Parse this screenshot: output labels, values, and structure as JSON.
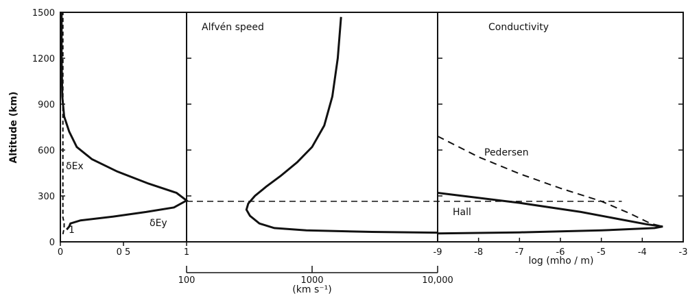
{
  "chart_data": [
    {
      "type": "line",
      "panel": "electric-field",
      "ylabel": "Altitude (km)",
      "ylim": [
        0,
        1500
      ],
      "y_ticks": [
        "0",
        "300",
        "600",
        "900",
        "1200",
        "1500"
      ],
      "xlim": [
        0,
        1
      ],
      "x_ticks": [
        "0",
        "0 5",
        "1"
      ],
      "series": [
        {
          "name": "δEx",
          "points": [
            [
              0.02,
              50
            ],
            [
              0.03,
              90
            ],
            [
              0.03,
              120
            ],
            [
              0.02,
              160
            ],
            [
              0.02,
              300
            ],
            [
              0.02,
              600
            ],
            [
              0.02,
              1000
            ],
            [
              0.02,
              1500
            ]
          ]
        },
        {
          "name": "δEy",
          "points": [
            [
              0.05,
              80
            ],
            [
              0.07,
              100
            ],
            [
              0.08,
              120
            ],
            [
              0.16,
              140
            ],
            [
              0.42,
              165
            ],
            [
              0.68,
              195
            ],
            [
              0.9,
              225
            ],
            [
              1.0,
              270
            ],
            [
              0.92,
              320
            ],
            [
              0.7,
              380
            ],
            [
              0.45,
              460
            ],
            [
              0.25,
              540
            ],
            [
              0.13,
              620
            ],
            [
              0.07,
              720
            ],
            [
              0.03,
              820
            ],
            [
              0.015,
              950
            ],
            [
              0.01,
              1200
            ],
            [
              0.01,
              1500
            ]
          ]
        }
      ],
      "annotations": [
        "δEx",
        "δEy",
        "1"
      ]
    },
    {
      "type": "line",
      "panel": "alfven-speed",
      "title": "Alfvén speed",
      "xlabel": "(km s⁻¹)",
      "x_scale": "log",
      "xlim": [
        100,
        10000
      ],
      "x_ticks": [
        "100",
        "1000",
        "10,000"
      ],
      "ylim": [
        0,
        1500
      ],
      "series": [
        {
          "name": "Alfvén speed",
          "points": [
            [
              10000,
              60
            ],
            [
              3000,
              65
            ],
            [
              900,
              75
            ],
            [
              500,
              90
            ],
            [
              380,
              120
            ],
            [
              320,
              170
            ],
            [
              300,
              210
            ],
            [
              310,
              250
            ],
            [
              350,
              300
            ],
            [
              430,
              360
            ],
            [
              560,
              430
            ],
            [
              760,
              520
            ],
            [
              1000,
              620
            ],
            [
              1250,
              760
            ],
            [
              1450,
              950
            ],
            [
              1600,
              1200
            ],
            [
              1700,
              1470
            ]
          ]
        }
      ]
    },
    {
      "type": "line",
      "panel": "conductivity",
      "title": "Conductivity",
      "xlabel": "log (mho / m)",
      "xlim": [
        -9,
        -3
      ],
      "x_ticks": [
        "-9",
        "-8",
        "-7",
        "-6",
        "-5",
        "-4",
        "-3"
      ],
      "ylim": [
        0,
        1500
      ],
      "series": [
        {
          "name": "Pedersen",
          "style": "dashed",
          "points": [
            [
              -9,
              690
            ],
            [
              -8,
              555
            ],
            [
              -7,
              445
            ],
            [
              -6,
              350
            ],
            [
              -5,
              265
            ],
            [
              -4.3,
              185
            ],
            [
              -3.8,
              120
            ],
            [
              -3.5,
              100
            ]
          ]
        },
        {
          "name": "Hall",
          "style": "solid",
          "points": [
            [
              -9,
              55
            ],
            [
              -7,
              62
            ],
            [
              -5,
              75
            ],
            [
              -3.7,
              90
            ],
            [
              -3.5,
              100
            ],
            [
              -3.9,
              115
            ],
            [
              -4.5,
              145
            ],
            [
              -5.5,
              195
            ],
            [
              -7,
              255
            ],
            [
              -9,
              320
            ]
          ]
        }
      ],
      "annotations": [
        "Pedersen",
        "Hall"
      ]
    }
  ],
  "reference_line": {
    "style": "dashed",
    "altitude": 265
  }
}
